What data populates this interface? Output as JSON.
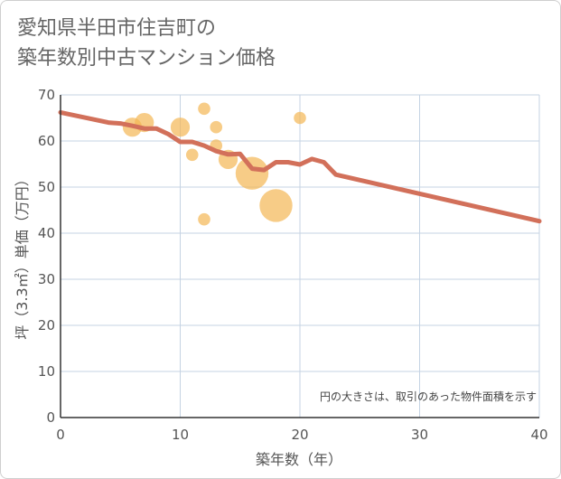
{
  "title_line1": "愛知県半田市住吉町の",
  "title_line2": "築年数別中古マンション価格",
  "chart_data": {
    "type": "scatter",
    "xlabel": "築年数（年）",
    "ylabel": "坪（3.3㎡）単価（万円）",
    "xlim": [
      0,
      40
    ],
    "ylim": [
      0,
      70
    ],
    "x_ticks": [
      0,
      10,
      20,
      30,
      40
    ],
    "y_ticks": [
      0,
      10,
      20,
      30,
      40,
      50,
      60,
      70
    ],
    "grid": true,
    "note": "円の大きさは、取引のあった物件面積を示す",
    "colors": {
      "bubble": "#f4b654",
      "line": "#d2705a",
      "grid": "#c5d3e3",
      "axis": "#333333"
    },
    "bubbles": [
      {
        "x": 6,
        "y": 63,
        "size": 2
      },
      {
        "x": 7,
        "y": 64,
        "size": 2
      },
      {
        "x": 10,
        "y": 63,
        "size": 2
      },
      {
        "x": 11,
        "y": 57,
        "size": 1
      },
      {
        "x": 12,
        "y": 67,
        "size": 1
      },
      {
        "x": 12,
        "y": 43,
        "size": 1
      },
      {
        "x": 13,
        "y": 63,
        "size": 1
      },
      {
        "x": 13,
        "y": 59,
        "size": 1
      },
      {
        "x": 14,
        "y": 56,
        "size": 2
      },
      {
        "x": 16,
        "y": 53,
        "size": 4
      },
      {
        "x": 18,
        "y": 46,
        "size": 4
      },
      {
        "x": 20,
        "y": 65,
        "size": 1
      }
    ],
    "trend_line": [
      {
        "x": 0,
        "y": 66.2
      },
      {
        "x": 4,
        "y": 64
      },
      {
        "x": 5,
        "y": 63.8
      },
      {
        "x": 6,
        "y": 63.3
      },
      {
        "x": 7,
        "y": 62.7
      },
      {
        "x": 8,
        "y": 62.7
      },
      {
        "x": 9,
        "y": 61.5
      },
      {
        "x": 10,
        "y": 59.8
      },
      {
        "x": 11,
        "y": 59.8
      },
      {
        "x": 12,
        "y": 59
      },
      {
        "x": 13,
        "y": 57.8
      },
      {
        "x": 14,
        "y": 57.1
      },
      {
        "x": 15,
        "y": 57.2
      },
      {
        "x": 16,
        "y": 54
      },
      {
        "x": 17,
        "y": 53.7
      },
      {
        "x": 18,
        "y": 55.4
      },
      {
        "x": 19,
        "y": 55.4
      },
      {
        "x": 20,
        "y": 54.9
      },
      {
        "x": 21,
        "y": 56.1
      },
      {
        "x": 22,
        "y": 55.4
      },
      {
        "x": 23,
        "y": 52.7
      },
      {
        "x": 40,
        "y": 42.6
      }
    ]
  }
}
